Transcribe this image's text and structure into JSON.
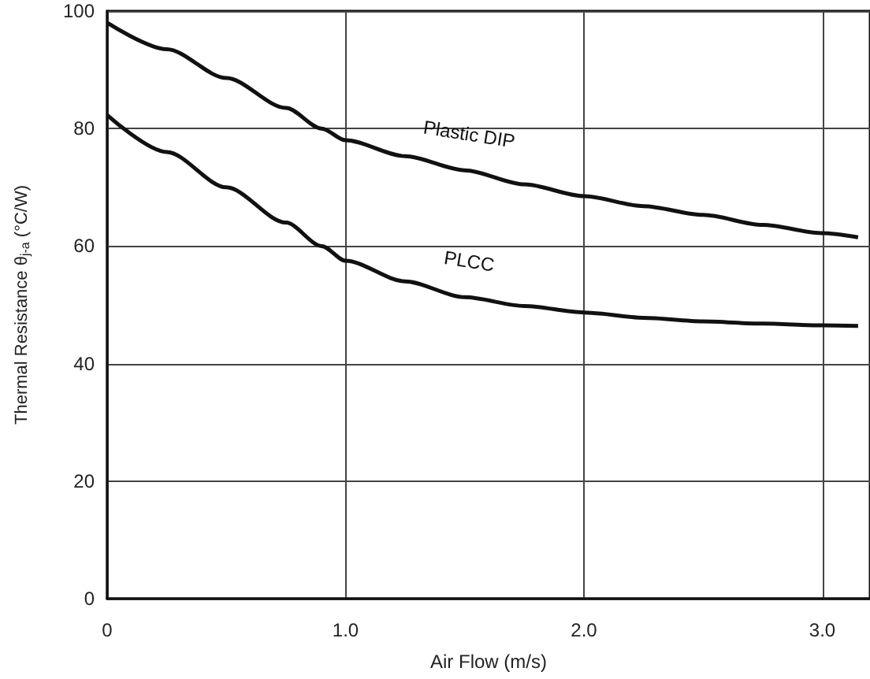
{
  "chart_data": {
    "type": "line",
    "xlabel": "Air Flow (m/s)",
    "ylabel": "Thermal Resistance θ$_{j-a}$ (°C/W)",
    "x": [
      0,
      0.25,
      0.5,
      0.75,
      0.9,
      1.0,
      1.25,
      1.5,
      1.75,
      2.0,
      2.25,
      2.5,
      2.75,
      3.0,
      3.15
    ],
    "series": [
      {
        "name": "Plastic DIP",
        "color": "#111111",
        "values": [
          98,
          93.5,
          88.6,
          83.5,
          80,
          78,
          75.3,
          72.9,
          70.5,
          68.5,
          66.8,
          65.3,
          63.6,
          62.2,
          61.5
        ]
      },
      {
        "name": "PLCC",
        "color": "#111111",
        "values": [
          82.3,
          76,
          70,
          64,
          60,
          57.5,
          54,
          51.3,
          49.8,
          48.7,
          47.8,
          47.2,
          46.8,
          46.5,
          46.4
        ]
      }
    ],
    "xlim": [
      0,
      3.2
    ],
    "xticks": [
      0,
      {
        "value": 1,
        "label": "1.0"
      },
      {
        "value": 2,
        "label": "2.0"
      },
      {
        "value": 3,
        "label": "3.0"
      }
    ],
    "ylim": [
      0,
      100
    ],
    "yticks": [
      0,
      20,
      40,
      60,
      80,
      100
    ],
    "grid": true,
    "legend": false,
    "marker": "none",
    "line_style": "solid"
  }
}
